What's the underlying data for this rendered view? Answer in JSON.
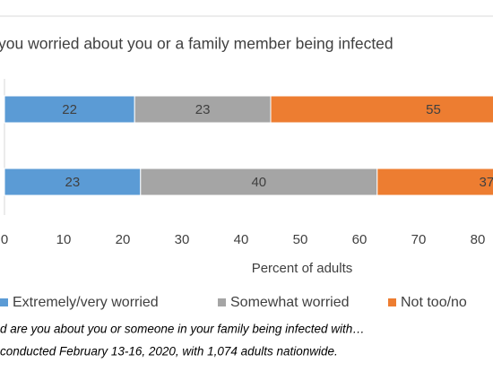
{
  "chart_data": {
    "type": "bar",
    "orientation": "horizontal",
    "stacked": true,
    "title": "you worried about you or a family member being infected",
    "categories": [
      null,
      null
    ],
    "series": [
      {
        "name": "Extremely/very worried",
        "color": "#5b9bd5",
        "values": [
          22,
          23
        ]
      },
      {
        "name": "Somewhat worried",
        "color": "#a5a5a5",
        "values": [
          23,
          40
        ]
      },
      {
        "name": "Not too/no",
        "color": "#ed7d31",
        "values": [
          55,
          37
        ]
      }
    ],
    "xlim": [
      0,
      100
    ],
    "xticks": [
      0,
      10,
      20,
      30,
      40,
      50,
      60,
      70,
      80
    ],
    "xlabel": "Percent of adults",
    "legend": "bottom",
    "footnotes": [
      "d are you about you or someone in your family being infected with…",
      "conducted February 13-16, 2020, with 1,074 adults nationwide."
    ]
  }
}
